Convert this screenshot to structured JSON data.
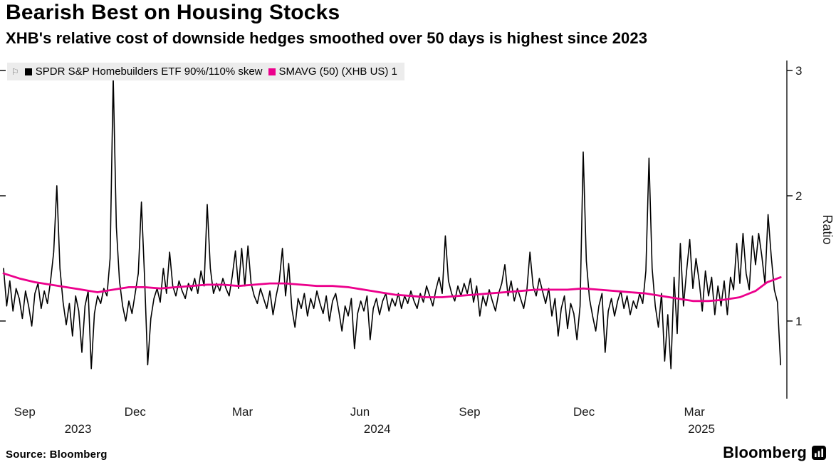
{
  "title": "Bearish Best on Housing Stocks",
  "subtitle": "XHB's relative cost of downside hedges smoothed over 50 days is highest since 2023",
  "source": "Source: Bloomberg",
  "brand": {
    "wordmark": "Bloomberg"
  },
  "legend": [
    {
      "label": "SPDR S&P Homebuilders ETF 90%/110% skew",
      "color": "#000000"
    },
    {
      "label": "SMAVG (50) (XHB US) 1",
      "color": "#ec008c"
    }
  ],
  "chart_data": {
    "type": "line",
    "title": "Bearish Best on Housing Stocks",
    "xlabel": "",
    "ylabel": "Ratio",
    "ylim": [
      0.38,
      3.08
    ],
    "yticks": [
      1,
      2,
      3
    ],
    "grid": false,
    "legend_position": "top-left",
    "xticks": [
      {
        "label": "Sep",
        "x": 0.027
      },
      {
        "label": "Dec",
        "x": 0.168
      },
      {
        "label": "Mar",
        "x": 0.305
      },
      {
        "label": "Jun",
        "x": 0.455
      },
      {
        "label": "Sep",
        "x": 0.595
      },
      {
        "label": "Dec",
        "x": 0.741
      },
      {
        "label": "Mar",
        "x": 0.882
      }
    ],
    "year_ticks": [
      {
        "label": "2023",
        "x": 0.095
      },
      {
        "label": "2024",
        "x": 0.477
      },
      {
        "label": "2025",
        "x": 0.891
      }
    ],
    "series": [
      {
        "name": "SPDR S&P Homebuilders ETF 90%/110% skew",
        "color": "#000000",
        "width": 1.6,
        "points": [
          [
            0.0,
            1.42
          ],
          [
            0.004,
            1.12
          ],
          [
            0.008,
            1.32
          ],
          [
            0.012,
            1.08
          ],
          [
            0.016,
            1.26
          ],
          [
            0.02,
            1.18
          ],
          [
            0.024,
            1.02
          ],
          [
            0.028,
            1.24
          ],
          [
            0.032,
            1.12
          ],
          [
            0.036,
            0.96
          ],
          [
            0.04,
            1.22
          ],
          [
            0.044,
            1.3
          ],
          [
            0.048,
            1.1
          ],
          [
            0.052,
            1.24
          ],
          [
            0.056,
            1.14
          ],
          [
            0.06,
            1.32
          ],
          [
            0.064,
            1.55
          ],
          [
            0.068,
            2.08
          ],
          [
            0.072,
            1.42
          ],
          [
            0.076,
            1.15
          ],
          [
            0.08,
            0.97
          ],
          [
            0.084,
            1.14
          ],
          [
            0.088,
            0.88
          ],
          [
            0.092,
            1.2
          ],
          [
            0.096,
            1.08
          ],
          [
            0.1,
            0.75
          ],
          [
            0.104,
            1.12
          ],
          [
            0.108,
            1.24
          ],
          [
            0.112,
            0.62
          ],
          [
            0.116,
            1.06
          ],
          [
            0.12,
            1.2
          ],
          [
            0.124,
            1.14
          ],
          [
            0.128,
            1.26
          ],
          [
            0.132,
            1.2
          ],
          [
            0.136,
            1.5
          ],
          [
            0.14,
            2.95
          ],
          [
            0.144,
            1.75
          ],
          [
            0.148,
            1.32
          ],
          [
            0.152,
            1.12
          ],
          [
            0.156,
            1.0
          ],
          [
            0.16,
            1.16
          ],
          [
            0.164,
            1.06
          ],
          [
            0.168,
            1.22
          ],
          [
            0.172,
            1.38
          ],
          [
            0.176,
            1.95
          ],
          [
            0.18,
            1.35
          ],
          [
            0.184,
            0.65
          ],
          [
            0.188,
            1.02
          ],
          [
            0.192,
            1.18
          ],
          [
            0.196,
            1.26
          ],
          [
            0.2,
            1.15
          ],
          [
            0.204,
            1.42
          ],
          [
            0.208,
            1.22
          ],
          [
            0.212,
            1.55
          ],
          [
            0.216,
            1.28
          ],
          [
            0.22,
            1.2
          ],
          [
            0.224,
            1.32
          ],
          [
            0.228,
            1.24
          ],
          [
            0.232,
            1.18
          ],
          [
            0.236,
            1.3
          ],
          [
            0.24,
            1.24
          ],
          [
            0.244,
            1.34
          ],
          [
            0.248,
            1.22
          ],
          [
            0.252,
            1.4
          ],
          [
            0.256,
            1.28
          ],
          [
            0.26,
            1.93
          ],
          [
            0.264,
            1.42
          ],
          [
            0.268,
            1.22
          ],
          [
            0.272,
            1.3
          ],
          [
            0.276,
            1.24
          ],
          [
            0.28,
            1.34
          ],
          [
            0.284,
            1.26
          ],
          [
            0.288,
            1.2
          ],
          [
            0.292,
            1.36
          ],
          [
            0.296,
            1.56
          ],
          [
            0.3,
            1.26
          ],
          [
            0.304,
            1.58
          ],
          [
            0.308,
            1.28
          ],
          [
            0.312,
            1.6
          ],
          [
            0.316,
            1.3
          ],
          [
            0.32,
            1.2
          ],
          [
            0.324,
            1.14
          ],
          [
            0.328,
            1.26
          ],
          [
            0.332,
            1.18
          ],
          [
            0.336,
            1.1
          ],
          [
            0.34,
            1.24
          ],
          [
            0.344,
            1.05
          ],
          [
            0.348,
            1.2
          ],
          [
            0.352,
            1.32
          ],
          [
            0.356,
            1.58
          ],
          [
            0.36,
            1.2
          ],
          [
            0.364,
            1.46
          ],
          [
            0.368,
            1.1
          ],
          [
            0.372,
            0.95
          ],
          [
            0.376,
            1.18
          ],
          [
            0.38,
            1.1
          ],
          [
            0.384,
            1.22
          ],
          [
            0.388,
            1.04
          ],
          [
            0.392,
            1.18
          ],
          [
            0.396,
            1.1
          ],
          [
            0.4,
            1.24
          ],
          [
            0.404,
            1.14
          ],
          [
            0.408,
            1.06
          ],
          [
            0.412,
            1.2
          ],
          [
            0.416,
            1.0
          ],
          [
            0.42,
            1.16
          ],
          [
            0.424,
            1.22
          ],
          [
            0.428,
            1.08
          ],
          [
            0.432,
            0.92
          ],
          [
            0.436,
            1.12
          ],
          [
            0.44,
            1.04
          ],
          [
            0.444,
            1.18
          ],
          [
            0.448,
            0.78
          ],
          [
            0.452,
            1.06
          ],
          [
            0.456,
            1.16
          ],
          [
            0.46,
            1.08
          ],
          [
            0.464,
            1.2
          ],
          [
            0.468,
            0.85
          ],
          [
            0.472,
            1.1
          ],
          [
            0.476,
            1.18
          ],
          [
            0.48,
            1.05
          ],
          [
            0.484,
            1.16
          ],
          [
            0.488,
            1.22
          ],
          [
            0.492,
            1.08
          ],
          [
            0.496,
            1.18
          ],
          [
            0.5,
            1.12
          ],
          [
            0.504,
            1.22
          ],
          [
            0.508,
            1.1
          ],
          [
            0.512,
            1.2
          ],
          [
            0.516,
            1.14
          ],
          [
            0.52,
            1.24
          ],
          [
            0.524,
            1.16
          ],
          [
            0.528,
            1.1
          ],
          [
            0.532,
            1.22
          ],
          [
            0.536,
            1.15
          ],
          [
            0.54,
            1.28
          ],
          [
            0.544,
            1.2
          ],
          [
            0.548,
            1.12
          ],
          [
            0.552,
            1.25
          ],
          [
            0.556,
            1.35
          ],
          [
            0.56,
            1.22
          ],
          [
            0.564,
            1.68
          ],
          [
            0.568,
            1.32
          ],
          [
            0.572,
            1.22
          ],
          [
            0.576,
            1.16
          ],
          [
            0.58,
            1.28
          ],
          [
            0.584,
            1.2
          ],
          [
            0.588,
            1.3
          ],
          [
            0.592,
            1.22
          ],
          [
            0.596,
            1.34
          ],
          [
            0.6,
            1.15
          ],
          [
            0.604,
            1.28
          ],
          [
            0.608,
            1.04
          ],
          [
            0.612,
            1.2
          ],
          [
            0.616,
            1.12
          ],
          [
            0.62,
            1.25
          ],
          [
            0.624,
            1.16
          ],
          [
            0.628,
            1.08
          ],
          [
            0.632,
            1.22
          ],
          [
            0.636,
            1.3
          ],
          [
            0.64,
            1.45
          ],
          [
            0.644,
            1.2
          ],
          [
            0.648,
            1.32
          ],
          [
            0.652,
            1.16
          ],
          [
            0.656,
            1.26
          ],
          [
            0.66,
            1.18
          ],
          [
            0.664,
            1.1
          ],
          [
            0.668,
            1.24
          ],
          [
            0.672,
            1.55
          ],
          [
            0.676,
            1.28
          ],
          [
            0.68,
            1.2
          ],
          [
            0.684,
            1.34
          ],
          [
            0.688,
            1.24
          ],
          [
            0.692,
            1.14
          ],
          [
            0.696,
            1.26
          ],
          [
            0.7,
            1.04
          ],
          [
            0.704,
            1.18
          ],
          [
            0.708,
            0.88
          ],
          [
            0.712,
            1.1
          ],
          [
            0.716,
            1.2
          ],
          [
            0.72,
            0.94
          ],
          [
            0.724,
            1.14
          ],
          [
            0.728,
            1.06
          ],
          [
            0.732,
            0.85
          ],
          [
            0.736,
            1.12
          ],
          [
            0.74,
            2.35
          ],
          [
            0.744,
            1.48
          ],
          [
            0.748,
            1.18
          ],
          [
            0.752,
            1.04
          ],
          [
            0.756,
            0.92
          ],
          [
            0.76,
            1.12
          ],
          [
            0.764,
            1.22
          ],
          [
            0.768,
            0.75
          ],
          [
            0.772,
            1.08
          ],
          [
            0.776,
            1.18
          ],
          [
            0.78,
            1.04
          ],
          [
            0.784,
            1.16
          ],
          [
            0.788,
            1.24
          ],
          [
            0.792,
            1.1
          ],
          [
            0.796,
            1.2
          ],
          [
            0.8,
            1.05
          ],
          [
            0.804,
            1.16
          ],
          [
            0.808,
            1.1
          ],
          [
            0.812,
            1.22
          ],
          [
            0.816,
            1.14
          ],
          [
            0.82,
            1.4
          ],
          [
            0.824,
            2.3
          ],
          [
            0.828,
            1.42
          ],
          [
            0.832,
            1.12
          ],
          [
            0.836,
            0.95
          ],
          [
            0.84,
            1.22
          ],
          [
            0.844,
            0.68
          ],
          [
            0.848,
            1.05
          ],
          [
            0.852,
            0.62
          ],
          [
            0.856,
            1.35
          ],
          [
            0.86,
            0.9
          ],
          [
            0.864,
            1.62
          ],
          [
            0.868,
            1.12
          ],
          [
            0.872,
            1.4
          ],
          [
            0.876,
            1.65
          ],
          [
            0.88,
            1.26
          ],
          [
            0.884,
            1.5
          ],
          [
            0.888,
            1.32
          ],
          [
            0.892,
            1.08
          ],
          [
            0.896,
            1.4
          ],
          [
            0.9,
            1.2
          ],
          [
            0.904,
            1.35
          ],
          [
            0.908,
            1.05
          ],
          [
            0.912,
            1.28
          ],
          [
            0.916,
            1.12
          ],
          [
            0.92,
            1.32
          ],
          [
            0.924,
            1.05
          ],
          [
            0.928,
            1.35
          ],
          [
            0.932,
            1.25
          ],
          [
            0.936,
            1.62
          ],
          [
            0.94,
            1.3
          ],
          [
            0.944,
            1.7
          ],
          [
            0.948,
            1.38
          ],
          [
            0.952,
            1.25
          ],
          [
            0.956,
            1.68
          ],
          [
            0.96,
            1.45
          ],
          [
            0.964,
            1.7
          ],
          [
            0.968,
            1.52
          ],
          [
            0.972,
            1.3
          ],
          [
            0.976,
            1.85
          ],
          [
            0.98,
            1.52
          ],
          [
            0.984,
            1.25
          ],
          [
            0.988,
            1.15
          ],
          [
            0.992,
            0.65
          ]
        ]
      },
      {
        "name": "SMAVG (50) (XHB US) 1",
        "color": "#ec008c",
        "width": 2.8,
        "points": [
          [
            0.0,
            1.38
          ],
          [
            0.02,
            1.34
          ],
          [
            0.04,
            1.31
          ],
          [
            0.06,
            1.29
          ],
          [
            0.08,
            1.27
          ],
          [
            0.1,
            1.25
          ],
          [
            0.12,
            1.23
          ],
          [
            0.14,
            1.25
          ],
          [
            0.16,
            1.27
          ],
          [
            0.18,
            1.27
          ],
          [
            0.2,
            1.26
          ],
          [
            0.22,
            1.27
          ],
          [
            0.24,
            1.28
          ],
          [
            0.26,
            1.29
          ],
          [
            0.28,
            1.29
          ],
          [
            0.3,
            1.28
          ],
          [
            0.32,
            1.29
          ],
          [
            0.34,
            1.3
          ],
          [
            0.36,
            1.3
          ],
          [
            0.38,
            1.29
          ],
          [
            0.4,
            1.28
          ],
          [
            0.42,
            1.28
          ],
          [
            0.44,
            1.27
          ],
          [
            0.46,
            1.25
          ],
          [
            0.48,
            1.23
          ],
          [
            0.5,
            1.21
          ],
          [
            0.52,
            1.2
          ],
          [
            0.54,
            1.19
          ],
          [
            0.56,
            1.19
          ],
          [
            0.58,
            1.2
          ],
          [
            0.6,
            1.21
          ],
          [
            0.62,
            1.22
          ],
          [
            0.64,
            1.23
          ],
          [
            0.66,
            1.24
          ],
          [
            0.68,
            1.25
          ],
          [
            0.7,
            1.25
          ],
          [
            0.72,
            1.25
          ],
          [
            0.74,
            1.26
          ],
          [
            0.76,
            1.25
          ],
          [
            0.78,
            1.24
          ],
          [
            0.8,
            1.23
          ],
          [
            0.82,
            1.22
          ],
          [
            0.84,
            1.2
          ],
          [
            0.86,
            1.18
          ],
          [
            0.88,
            1.16
          ],
          [
            0.9,
            1.16
          ],
          [
            0.92,
            1.17
          ],
          [
            0.94,
            1.19
          ],
          [
            0.96,
            1.24
          ],
          [
            0.975,
            1.31
          ],
          [
            0.992,
            1.35
          ]
        ]
      }
    ]
  }
}
